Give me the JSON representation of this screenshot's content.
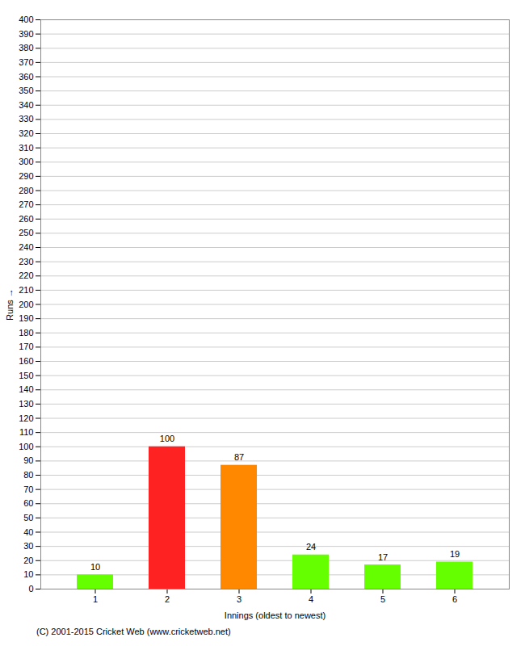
{
  "chart_data": {
    "type": "bar",
    "categories": [
      "1",
      "2",
      "3",
      "4",
      "5",
      "6"
    ],
    "values": [
      10,
      100,
      87,
      24,
      17,
      19
    ],
    "colors": [
      "#66ff00",
      "#ff2222",
      "#ff8800",
      "#66ff00",
      "#66ff00",
      "#66ff00"
    ],
    "xlabel": "Innings (oldest to newest)",
    "ylabel": "Runs",
    "ylim": [
      0,
      400
    ],
    "yticks": [
      0,
      10,
      20,
      30,
      40,
      50,
      60,
      70,
      80,
      90,
      100,
      110,
      120,
      130,
      140,
      150,
      160,
      170,
      180,
      190,
      200,
      210,
      220,
      230,
      240,
      250,
      260,
      270,
      280,
      290,
      300,
      310,
      320,
      330,
      340,
      350,
      360,
      370,
      380,
      390,
      400
    ],
    "grid": true,
    "data_labels": true,
    "annotations": [
      "(C) 2001-2015 Cricket Web (www.cricketweb.net)"
    ]
  }
}
